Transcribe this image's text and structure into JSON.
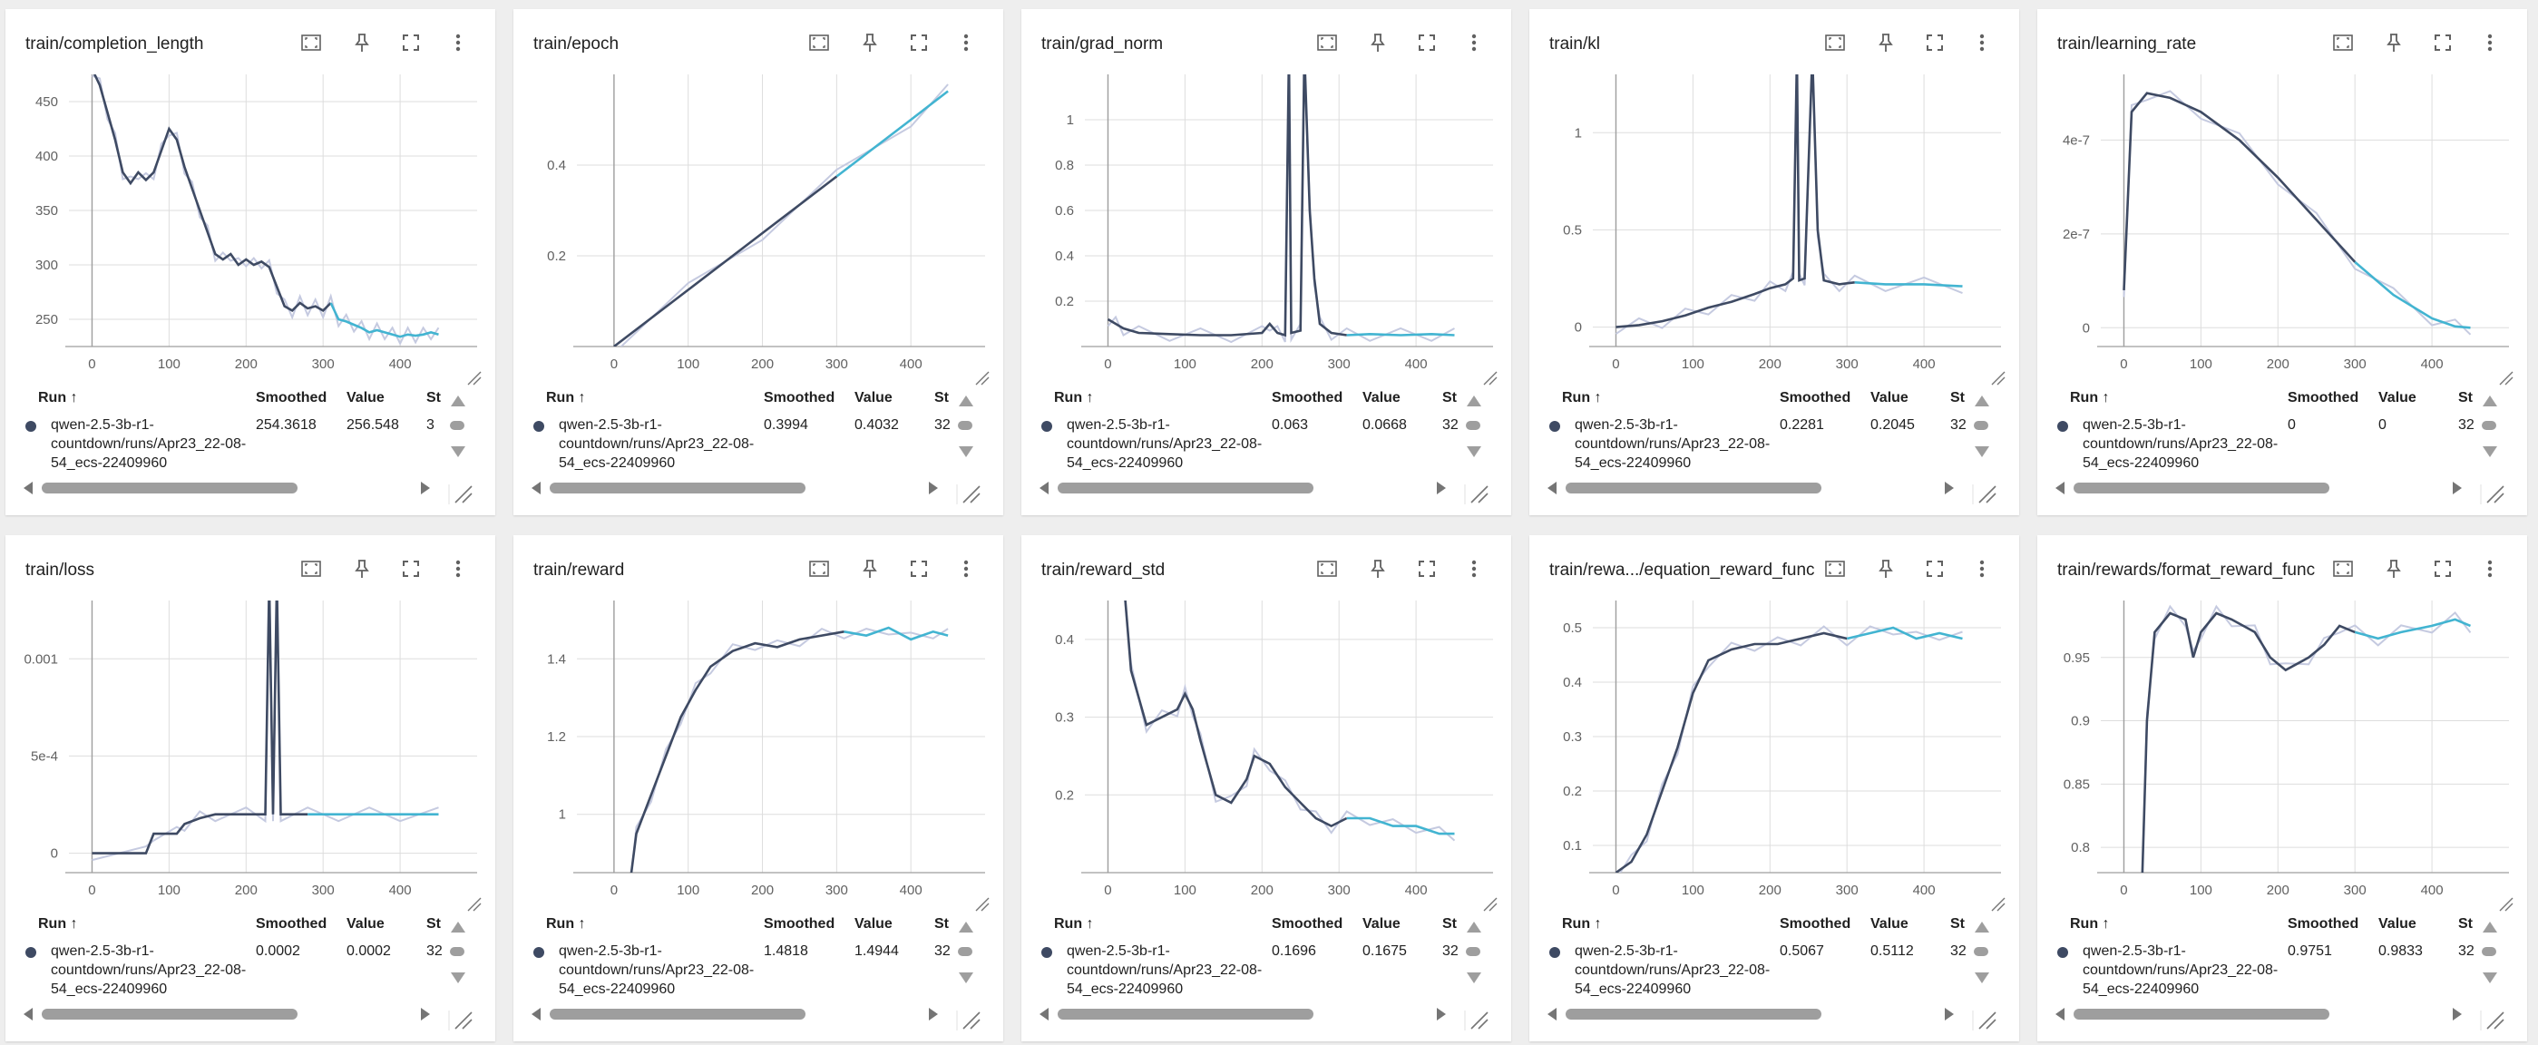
{
  "table_headers": {
    "run": "Run ↑",
    "smoothed": "Smoothed",
    "value": "Value",
    "step": "St"
  },
  "colors": {
    "dark_series": "#3e4a63",
    "light_series": "#42b4d1",
    "raw": "#c5cae0"
  },
  "cards": [
    {
      "title": "train/completion_length",
      "rows": [
        {
          "run": "qwen-2.5-3b-r1-countdown/runs/Apr23_22-08-54_ecs-22409960",
          "smoothed": "254.3618",
          "value": "256.548",
          "step": "3"
        }
      ],
      "chart_data": {
        "type": "line",
        "x_ticks": [
          "0",
          "100",
          "200",
          "300",
          "400"
        ],
        "y_ticks": [
          "250",
          "300",
          "350",
          "400",
          "450"
        ],
        "xlim": [
          -30,
          500
        ],
        "ylim": [
          225,
          475
        ],
        "points": [
          [
            0,
            480
          ],
          [
            10,
            465
          ],
          [
            20,
            440
          ],
          [
            30,
            415
          ],
          [
            40,
            385
          ],
          [
            50,
            375
          ],
          [
            60,
            385
          ],
          [
            70,
            378
          ],
          [
            80,
            385
          ],
          [
            90,
            405
          ],
          [
            100,
            425
          ],
          [
            110,
            415
          ],
          [
            120,
            390
          ],
          [
            130,
            370
          ],
          [
            140,
            350
          ],
          [
            150,
            330
          ],
          [
            160,
            310
          ],
          [
            170,
            305
          ],
          [
            180,
            310
          ],
          [
            190,
            300
          ],
          [
            200,
            305
          ],
          [
            210,
            300
          ],
          [
            220,
            303
          ],
          [
            230,
            298
          ],
          [
            240,
            280
          ],
          [
            250,
            262
          ],
          [
            260,
            258
          ],
          [
            270,
            265
          ],
          [
            280,
            260
          ],
          [
            290,
            262
          ],
          [
            300,
            258
          ],
          [
            310,
            265
          ],
          [
            320,
            250
          ],
          [
            330,
            248
          ],
          [
            340,
            245
          ],
          [
            350,
            242
          ],
          [
            360,
            238
          ],
          [
            370,
            240
          ],
          [
            380,
            238
          ],
          [
            390,
            236
          ],
          [
            400,
            234
          ],
          [
            410,
            236
          ],
          [
            420,
            235
          ],
          [
            430,
            236
          ],
          [
            440,
            238
          ],
          [
            450,
            236
          ]
        ],
        "split_x": 310
      }
    },
    {
      "title": "train/epoch",
      "rows": [
        {
          "run": "qwen-2.5-3b-r1-countdown/runs/Apr23_22-08-54_ecs-22409960",
          "smoothed": "0.3994",
          "value": "0.4032",
          "step": "32"
        }
      ],
      "chart_data": {
        "type": "line",
        "x_ticks": [
          "0",
          "100",
          "200",
          "300",
          "400"
        ],
        "y_ticks": [
          "0.2",
          "0.4"
        ],
        "xlim": [
          -50,
          500
        ],
        "ylim": [
          0,
          0.6
        ],
        "points": [
          [
            0,
            0
          ],
          [
            100,
            0.125
          ],
          [
            200,
            0.25
          ],
          [
            300,
            0.375
          ],
          [
            400,
            0.5
          ],
          [
            450,
            0.563
          ]
        ],
        "split_x": 310
      }
    },
    {
      "title": "train/grad_norm",
      "rows": [
        {
          "run": "qwen-2.5-3b-r1-countdown/runs/Apr23_22-08-54_ecs-22409960",
          "smoothed": "0.063",
          "value": "0.0668",
          "step": "32"
        }
      ],
      "chart_data": {
        "type": "line",
        "x_ticks": [
          "0",
          "100",
          "200",
          "300",
          "400"
        ],
        "y_ticks": [
          "0.2",
          "0.4",
          "0.6",
          "0.8",
          "1"
        ],
        "xlim": [
          -30,
          500
        ],
        "ylim": [
          0,
          1.2
        ],
        "points": [
          [
            0,
            0.12
          ],
          [
            10,
            0.1
          ],
          [
            20,
            0.08
          ],
          [
            40,
            0.06
          ],
          [
            80,
            0.055
          ],
          [
            120,
            0.05
          ],
          [
            160,
            0.05
          ],
          [
            200,
            0.06
          ],
          [
            210,
            0.1
          ],
          [
            220,
            0.06
          ],
          [
            230,
            0.05
          ],
          [
            235,
            1.3
          ],
          [
            238,
            0.06
          ],
          [
            250,
            0.07
          ],
          [
            255,
            1.3
          ],
          [
            262,
            0.6
          ],
          [
            268,
            0.3
          ],
          [
            275,
            0.1
          ],
          [
            290,
            0.06
          ],
          [
            310,
            0.05
          ],
          [
            340,
            0.055
          ],
          [
            380,
            0.05
          ],
          [
            420,
            0.055
          ],
          [
            450,
            0.05
          ]
        ],
        "split_x": 310
      }
    },
    {
      "title": "train/kl",
      "rows": [
        {
          "run": "qwen-2.5-3b-r1-countdown/runs/Apr23_22-08-54_ecs-22409960",
          "smoothed": "0.2281",
          "value": "0.2045",
          "step": "32"
        }
      ],
      "chart_data": {
        "type": "line",
        "x_ticks": [
          "0",
          "100",
          "200",
          "300",
          "400"
        ],
        "y_ticks": [
          "0",
          "0.5",
          "1"
        ],
        "xlim": [
          -30,
          500
        ],
        "ylim": [
          -0.1,
          1.3
        ],
        "points": [
          [
            0,
            0
          ],
          [
            30,
            0.01
          ],
          [
            60,
            0.03
          ],
          [
            90,
            0.06
          ],
          [
            120,
            0.1
          ],
          [
            150,
            0.13
          ],
          [
            180,
            0.17
          ],
          [
            200,
            0.2
          ],
          [
            220,
            0.22
          ],
          [
            230,
            0.25
          ],
          [
            235,
            1.4
          ],
          [
            238,
            0.24
          ],
          [
            245,
            0.25
          ],
          [
            255,
            1.4
          ],
          [
            262,
            0.5
          ],
          [
            270,
            0.24
          ],
          [
            290,
            0.22
          ],
          [
            310,
            0.23
          ],
          [
            350,
            0.22
          ],
          [
            400,
            0.22
          ],
          [
            450,
            0.21
          ]
        ],
        "split_x": 310
      }
    },
    {
      "title": "train/learning_rate",
      "rows": [
        {
          "run": "qwen-2.5-3b-r1-countdown/runs/Apr23_22-08-54_ecs-22409960",
          "smoothed": "0",
          "value": "0",
          "step": "32"
        }
      ],
      "chart_data": {
        "type": "line",
        "x_ticks": [
          "0",
          "100",
          "200",
          "300",
          "400"
        ],
        "y_ticks": [
          "0",
          "2e-7",
          "4e-7"
        ],
        "xlim": [
          -30,
          500
        ],
        "ylim": [
          -0.4,
          5.4
        ],
        "points": [
          [
            0,
            0.8
          ],
          [
            10,
            4.6
          ],
          [
            30,
            5.0
          ],
          [
            60,
            4.9
          ],
          [
            100,
            4.6
          ],
          [
            150,
            4.0
          ],
          [
            200,
            3.2
          ],
          [
            250,
            2.3
          ],
          [
            300,
            1.4
          ],
          [
            350,
            0.7
          ],
          [
            400,
            0.2
          ],
          [
            430,
            0.03
          ],
          [
            450,
            0
          ]
        ],
        "split_x": 300
      }
    },
    {
      "title": "train/loss",
      "rows": [
        {
          "run": "qwen-2.5-3b-r1-countdown/runs/Apr23_22-08-54_ecs-22409960",
          "smoothed": "0.0002",
          "value": "0.0002",
          "step": "32"
        }
      ],
      "chart_data": {
        "type": "line",
        "x_ticks": [
          "0",
          "100",
          "200",
          "300",
          "400"
        ],
        "y_ticks": [
          "0",
          "5e-4",
          "0.001"
        ],
        "xlim": [
          -30,
          500
        ],
        "ylim": [
          -0.0001,
          0.0013
        ],
        "points": [
          [
            0,
            0
          ],
          [
            70,
            0
          ],
          [
            80,
            0.0001
          ],
          [
            110,
            0.0001
          ],
          [
            120,
            0.00015
          ],
          [
            140,
            0.00018
          ],
          [
            160,
            0.0002
          ],
          [
            200,
            0.0002
          ],
          [
            225,
            0.0002
          ],
          [
            230,
            0.0014
          ],
          [
            235,
            0.0002
          ],
          [
            240,
            0.0014
          ],
          [
            245,
            0.0002
          ],
          [
            280,
            0.0002
          ],
          [
            320,
            0.0002
          ],
          [
            360,
            0.0002
          ],
          [
            400,
            0.0002
          ],
          [
            450,
            0.0002
          ]
        ],
        "split_x": 310
      }
    },
    {
      "title": "train/reward",
      "rows": [
        {
          "run": "qwen-2.5-3b-r1-countdown/runs/Apr23_22-08-54_ecs-22409960",
          "smoothed": "1.4818",
          "value": "1.4944",
          "step": "32"
        }
      ],
      "chart_data": {
        "type": "line",
        "x_ticks": [
          "0",
          "100",
          "200",
          "300",
          "400"
        ],
        "y_ticks": [
          "1",
          "1.2",
          "1.4"
        ],
        "xlim": [
          -50,
          500
        ],
        "ylim": [
          0.85,
          1.55
        ],
        "points": [
          [
            20,
            0.8
          ],
          [
            30,
            0.95
          ],
          [
            50,
            1.05
          ],
          [
            70,
            1.15
          ],
          [
            90,
            1.25
          ],
          [
            110,
            1.32
          ],
          [
            130,
            1.38
          ],
          [
            160,
            1.42
          ],
          [
            190,
            1.44
          ],
          [
            220,
            1.43
          ],
          [
            250,
            1.45
          ],
          [
            280,
            1.46
          ],
          [
            310,
            1.47
          ],
          [
            340,
            1.46
          ],
          [
            370,
            1.48
          ],
          [
            400,
            1.45
          ],
          [
            430,
            1.47
          ],
          [
            450,
            1.46
          ]
        ],
        "split_x": 310
      }
    },
    {
      "title": "train/reward_std",
      "rows": [
        {
          "run": "qwen-2.5-3b-r1-countdown/runs/Apr23_22-08-54_ecs-22409960",
          "smoothed": "0.1696",
          "value": "0.1675",
          "step": "32"
        }
      ],
      "chart_data": {
        "type": "line",
        "x_ticks": [
          "0",
          "100",
          "200",
          "300",
          "400"
        ],
        "y_ticks": [
          "0.2",
          "0.3",
          "0.4"
        ],
        "xlim": [
          -30,
          500
        ],
        "ylim": [
          0.1,
          0.45
        ],
        "points": [
          [
            20,
            0.48
          ],
          [
            30,
            0.36
          ],
          [
            50,
            0.29
          ],
          [
            70,
            0.3
          ],
          [
            90,
            0.31
          ],
          [
            100,
            0.33
          ],
          [
            110,
            0.31
          ],
          [
            120,
            0.27
          ],
          [
            140,
            0.2
          ],
          [
            160,
            0.19
          ],
          [
            180,
            0.22
          ],
          [
            190,
            0.25
          ],
          [
            210,
            0.24
          ],
          [
            230,
            0.21
          ],
          [
            250,
            0.19
          ],
          [
            270,
            0.17
          ],
          [
            290,
            0.16
          ],
          [
            310,
            0.17
          ],
          [
            340,
            0.17
          ],
          [
            370,
            0.16
          ],
          [
            400,
            0.16
          ],
          [
            430,
            0.15
          ],
          [
            450,
            0.15
          ]
        ],
        "split_x": 310
      }
    },
    {
      "title": "train/rewa.../equation_reward_func",
      "rows": [
        {
          "run": "qwen-2.5-3b-r1-countdown/runs/Apr23_22-08-54_ecs-22409960",
          "smoothed": "0.5067",
          "value": "0.5112",
          "step": "32"
        }
      ],
      "chart_data": {
        "type": "line",
        "x_ticks": [
          "0",
          "100",
          "200",
          "300",
          "400"
        ],
        "y_ticks": [
          "0.1",
          "0.2",
          "0.3",
          "0.4",
          "0.5"
        ],
        "xlim": [
          -30,
          500
        ],
        "ylim": [
          0.05,
          0.55
        ],
        "points": [
          [
            0,
            0.05
          ],
          [
            20,
            0.07
          ],
          [
            40,
            0.12
          ],
          [
            60,
            0.2
          ],
          [
            80,
            0.28
          ],
          [
            100,
            0.38
          ],
          [
            120,
            0.44
          ],
          [
            150,
            0.46
          ],
          [
            180,
            0.47
          ],
          [
            210,
            0.47
          ],
          [
            240,
            0.48
          ],
          [
            270,
            0.49
          ],
          [
            300,
            0.48
          ],
          [
            330,
            0.49
          ],
          [
            360,
            0.5
          ],
          [
            390,
            0.48
          ],
          [
            420,
            0.49
          ],
          [
            450,
            0.48
          ]
        ],
        "split_x": 310
      }
    },
    {
      "title": "train/rewards/format_reward_func",
      "rows": [
        {
          "run": "qwen-2.5-3b-r1-countdown/runs/Apr23_22-08-54_ecs-22409960",
          "smoothed": "0.9751",
          "value": "0.9833",
          "step": "32"
        }
      ],
      "chart_data": {
        "type": "line",
        "x_ticks": [
          "0",
          "100",
          "200",
          "300",
          "400"
        ],
        "y_ticks": [
          "0.8",
          "0.85",
          "0.9",
          "0.95"
        ],
        "xlim": [
          -30,
          500
        ],
        "ylim": [
          0.78,
          0.995
        ],
        "points": [
          [
            20,
            0.7
          ],
          [
            30,
            0.9
          ],
          [
            40,
            0.97
          ],
          [
            60,
            0.985
          ],
          [
            80,
            0.98
          ],
          [
            90,
            0.95
          ],
          [
            100,
            0.97
          ],
          [
            120,
            0.985
          ],
          [
            140,
            0.98
          ],
          [
            170,
            0.97
          ],
          [
            190,
            0.95
          ],
          [
            210,
            0.94
          ],
          [
            240,
            0.95
          ],
          [
            260,
            0.96
          ],
          [
            280,
            0.975
          ],
          [
            300,
            0.97
          ],
          [
            330,
            0.965
          ],
          [
            360,
            0.97
          ],
          [
            400,
            0.975
          ],
          [
            430,
            0.98
          ],
          [
            450,
            0.975
          ]
        ],
        "split_x": 310
      }
    }
  ]
}
